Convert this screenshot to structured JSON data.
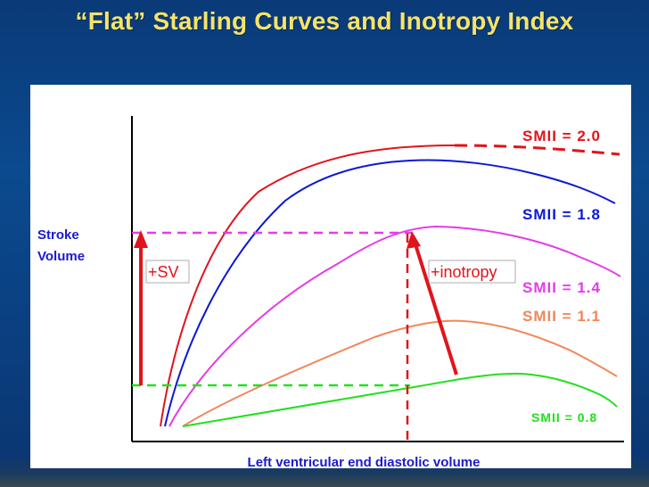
{
  "title": "“Flat” Starling Curves and Inotropy Index",
  "axes": {
    "ylabel_line1": "Stroke",
    "ylabel_line2": "Volume",
    "xlabel": "Left ventricular end diastolic volume"
  },
  "annotations": {
    "sv": "+SV",
    "inotropy": "+inotropy"
  },
  "curves": [
    {
      "key": "smii20",
      "label": "SMII = 2.0",
      "color": "#e0141c"
    },
    {
      "key": "smii18",
      "label": "SMII = 1.8",
      "color": "#0a18d6"
    },
    {
      "key": "smii14",
      "label": "SMII = 1.4",
      "color": "#e63be6"
    },
    {
      "key": "smii11",
      "label": "SMII = 1.1",
      "color": "#f0875a"
    },
    {
      "key": "smii08",
      "label": "SMII = 0.8",
      "color": "#22e01c"
    }
  ]
}
